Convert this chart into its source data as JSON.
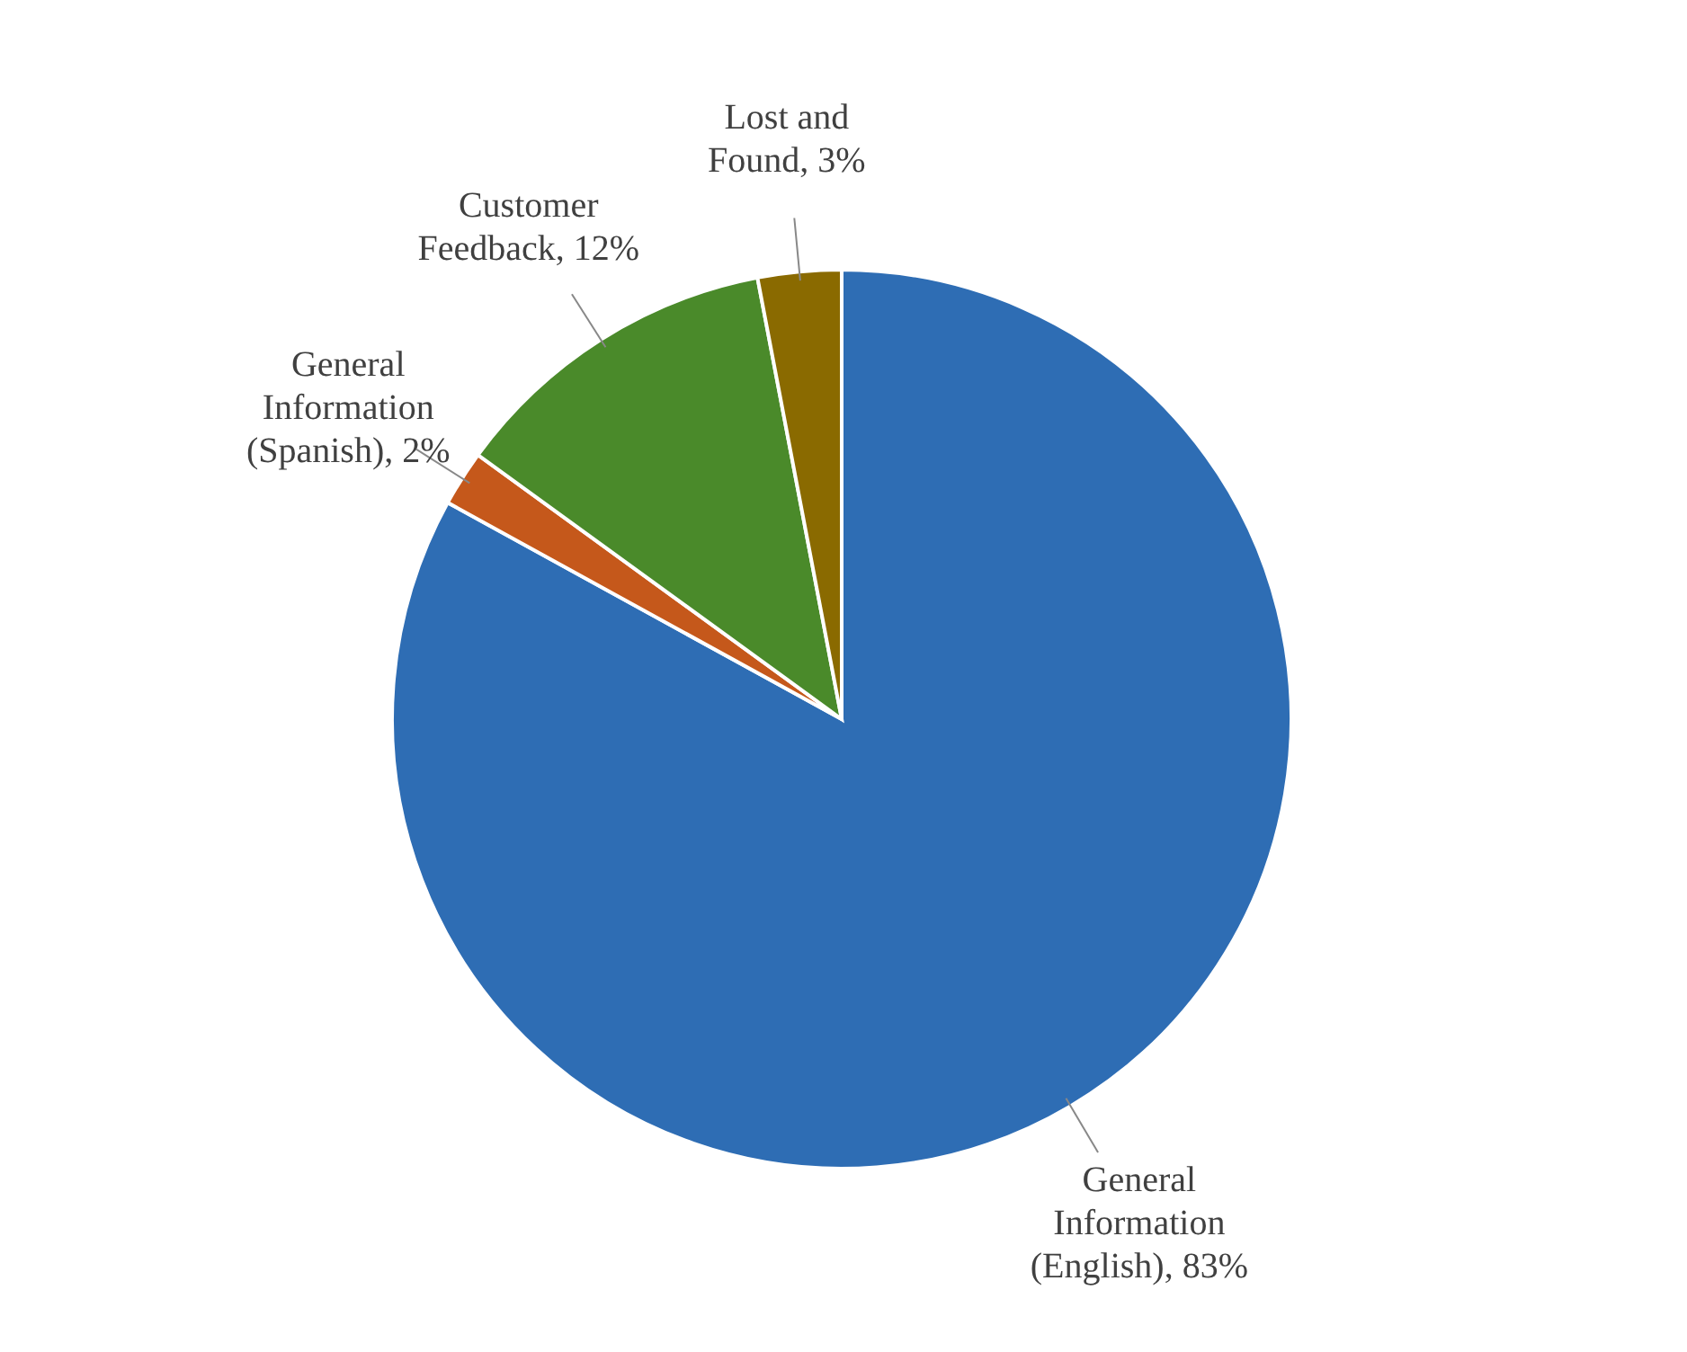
{
  "chart_data": {
    "type": "pie",
    "categories": [
      "General Information (English)",
      "General Information (Spanish)",
      "Customer Feedback",
      "Lost and Found"
    ],
    "values": [
      83,
      2,
      12,
      3
    ],
    "colors": [
      "#2e6db4",
      "#c5581b",
      "#4a8a2a",
      "#8a6a00"
    ],
    "value_labels": [
      "83%",
      "2%",
      "12%",
      "3%"
    ]
  }
}
